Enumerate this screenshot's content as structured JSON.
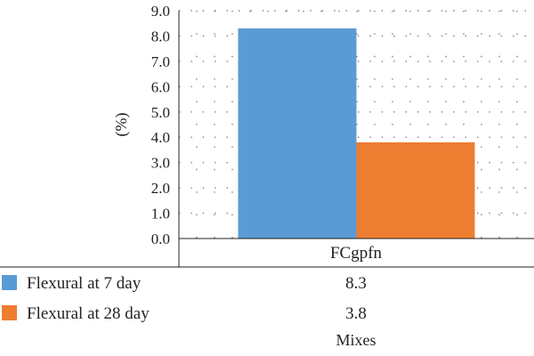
{
  "chart_data": {
    "type": "bar",
    "categories": [
      "FCgpfn"
    ],
    "series": [
      {
        "name": "Flexural at 7 day",
        "values": [
          8.3
        ],
        "color": "#5b9bd5"
      },
      {
        "name": "Flexural at 28 day",
        "values": [
          3.8
        ],
        "color": "#ed7d31"
      }
    ],
    "value_labels": [
      "8.3",
      "3.8"
    ],
    "ylabel": "(%)",
    "xlabel": "Mixes",
    "ylim": [
      0,
      9
    ],
    "yticks": [
      "0.0",
      "1.0",
      "2.0",
      "3.0",
      "4.0",
      "5.0",
      "6.0",
      "7.0",
      "8.0",
      "9.0"
    ],
    "grid": "dotted horizontal and vertical",
    "legend": "data table below plot"
  }
}
